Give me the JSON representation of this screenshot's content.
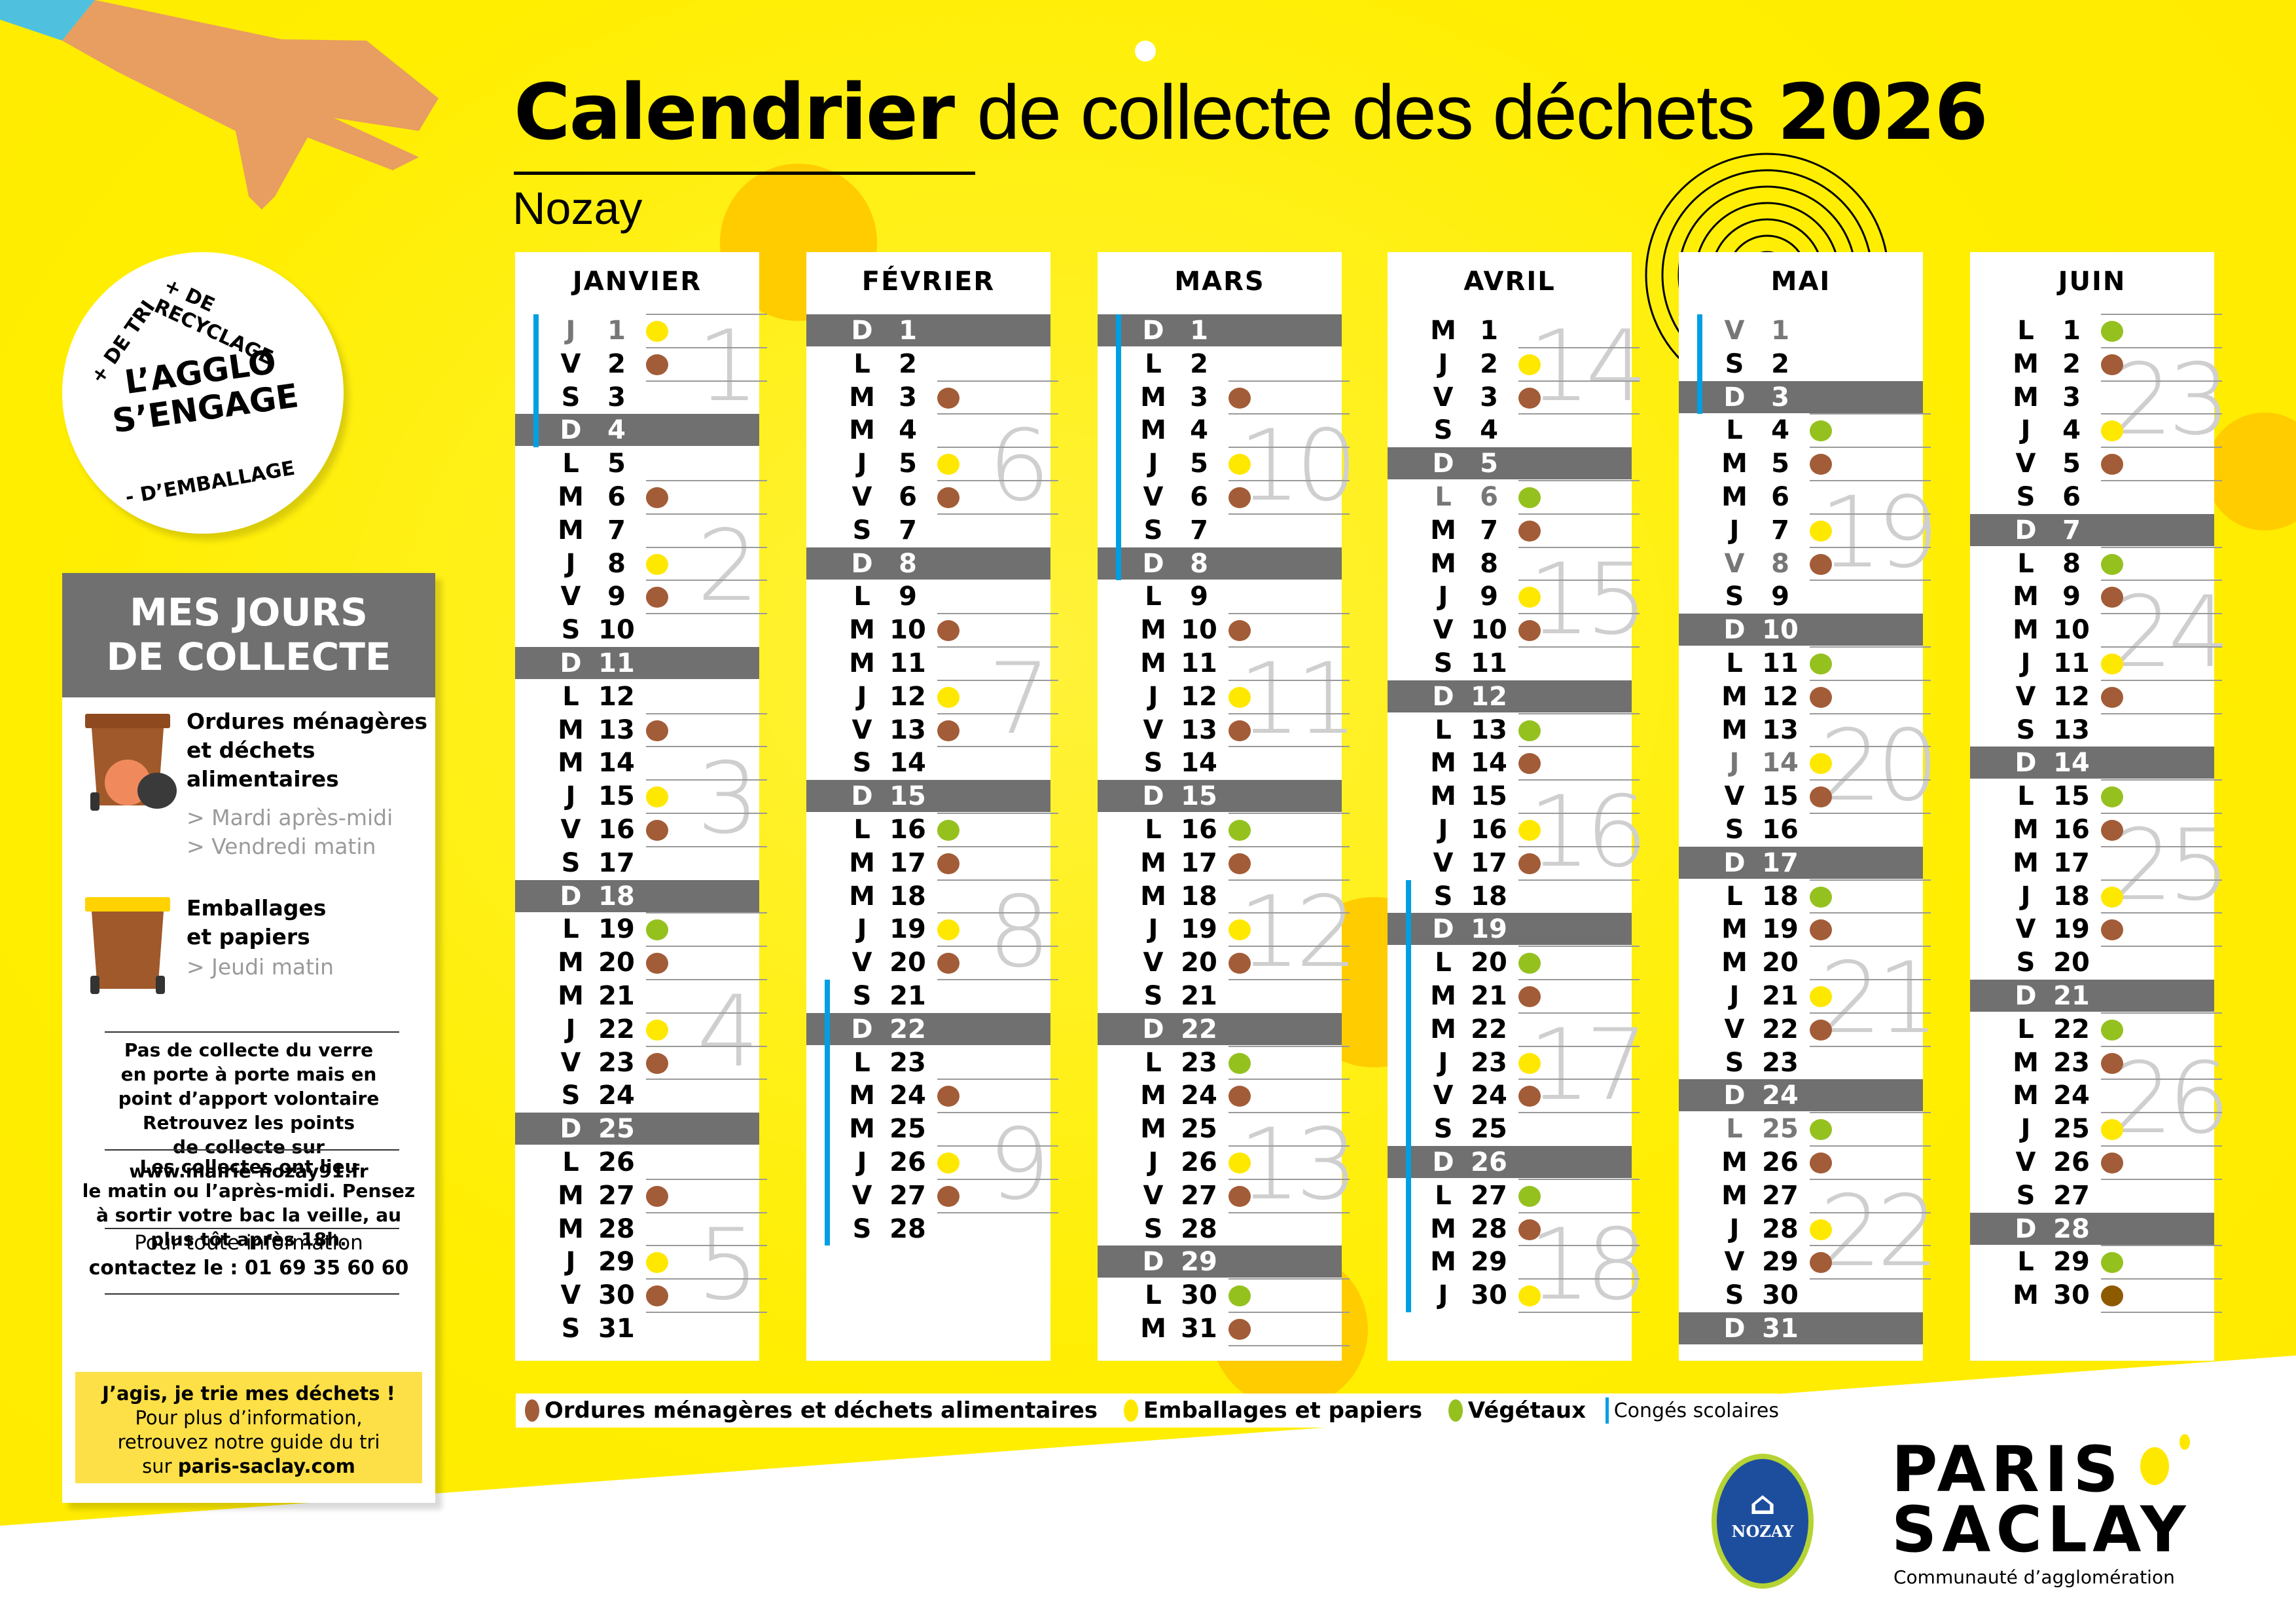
{
  "header": {
    "title_bold": "Calendrier",
    "title_light": "de collecte des déchets",
    "year": "2026",
    "commune": "Nozay"
  },
  "badge": {
    "line1": "L’AGGLO",
    "line2": "S’ENGAGE",
    "arc_top_left": "+ DE TRI",
    "arc_top_right": "+ DE RECYCLAGE",
    "arc_bottom": "- D’EMBALLAGE"
  },
  "panel": {
    "title_line1": "MES JOURS",
    "title_line2": "DE COLLECTE",
    "stream1": {
      "title": [
        "Ordures ménagères",
        "et déchets",
        "alimentaires"
      ],
      "days": [
        "> Mardi après-midi",
        "> Vendredi matin"
      ]
    },
    "stream2": {
      "title": [
        "Emballages",
        "et papiers"
      ],
      "days": [
        "> Jeudi matin"
      ]
    },
    "glass_note": [
      "Pas de collecte du verre",
      "en porte à porte mais en",
      "point d’apport volontaire",
      "Retrouvez les points",
      "de collecte sur",
      "www.mairie-nozay91.fr"
    ],
    "timing_note": [
      "Les collectes ont lieu",
      "le matin ou l’après-midi. Pensez",
      "à sortir votre bac la veille, au",
      "plus tôt après 18h."
    ],
    "contact_line1": "Pour toute information",
    "contact_line2": "contactez le : 01 69 35 60 60",
    "promo_bold": "J’agis, je trie mes déchets !",
    "promo_line1": "Pour plus d’information,",
    "promo_line2": "retrouvez notre guide du tri",
    "promo_line3_prefix": "sur ",
    "promo_link": "paris-saclay.com"
  },
  "colors": {
    "background": "#ffee00",
    "ordures": "#a25c37",
    "emballages": "#ffe800",
    "vegetaux": "#95c11f",
    "conges": "#009fe3",
    "sunday_bar": "#717070"
  },
  "legend": {
    "items": [
      {
        "label": "Ordures ménagères et déchets alimentaires",
        "color": "#a25c37",
        "icon": "brown-dot"
      },
      {
        "label": "Emballages et papiers",
        "color": "#ffe800",
        "icon": "yellow-dot"
      },
      {
        "label": "Végétaux",
        "color": "#95c11f",
        "icon": "green-dot"
      },
      {
        "label": "Congés scolaires",
        "color": "#009fe3",
        "icon": "blue-bar"
      }
    ]
  },
  "logos": {
    "commune": "NOZAY",
    "agglo_line1": "PARIS",
    "agglo_line2": "SACLAY",
    "agglo_sub": "Communauté d’agglomération"
  },
  "months": [
    {
      "name": "JANVIER",
      "first_weekday": 3,
      "days_count": 31,
      "holidays_gray": [
        1
      ],
      "collections": {
        "1": "yellow",
        "2": "brown",
        "6": "brown",
        "8": "yellow",
        "9": "brown",
        "13": "brown",
        "15": "yellow",
        "16": "brown",
        "19": "green",
        "20": "brown",
        "22": "yellow",
        "23": "brown",
        "27": "brown",
        "29": "yellow",
        "30": "brown"
      },
      "school_holidays": [
        [
          1,
          4
        ]
      ],
      "weeks": [
        {
          "n": "1",
          "row": 2
        },
        {
          "n": "2",
          "row": 8
        },
        {
          "n": "3",
          "row": 15
        },
        {
          "n": "4",
          "row": 22
        },
        {
          "n": "5",
          "row": 29
        }
      ]
    },
    {
      "name": "FÉVRIER",
      "first_weekday": 6,
      "days_count": 28,
      "holidays_gray": [],
      "collections": {
        "3": "brown",
        "5": "yellow",
        "6": "brown",
        "10": "brown",
        "12": "yellow",
        "13": "brown",
        "16": "green",
        "17": "brown",
        "19": "yellow",
        "20": "brown",
        "24": "brown",
        "26": "yellow",
        "27": "brown"
      },
      "school_holidays": [
        [
          21,
          28
        ]
      ],
      "weeks": [
        {
          "n": "6",
          "row": 5
        },
        {
          "n": "7",
          "row": 12
        },
        {
          "n": "8",
          "row": 19
        },
        {
          "n": "9",
          "row": 26
        }
      ]
    },
    {
      "name": "MARS",
      "first_weekday": 6,
      "days_count": 31,
      "holidays_gray": [],
      "collections": {
        "3": "brown",
        "5": "yellow",
        "6": "brown",
        "10": "brown",
        "12": "yellow",
        "13": "brown",
        "16": "green",
        "17": "brown",
        "19": "yellow",
        "20": "brown",
        "23": "green",
        "24": "brown",
        "26": "yellow",
        "27": "brown",
        "30": "green",
        "31": "brown"
      },
      "school_holidays": [
        [
          1,
          8
        ]
      ],
      "weeks": [
        {
          "n": "10",
          "row": 5
        },
        {
          "n": "11",
          "row": 12
        },
        {
          "n": "12",
          "row": 19
        },
        {
          "n": "13",
          "row": 26
        }
      ]
    },
    {
      "name": "AVRIL",
      "first_weekday": 2,
      "days_count": 30,
      "holidays_gray": [
        6
      ],
      "collections": {
        "2": "yellow",
        "3": "brown",
        "6": "green",
        "7": "brown",
        "9": "yellow",
        "10": "brown",
        "13": "green",
        "14": "brown",
        "16": "yellow",
        "17": "brown",
        "20": "green",
        "21": "brown",
        "23": "yellow",
        "24": "brown",
        "27": "green",
        "28": "brown",
        "30": "yellow"
      },
      "school_holidays": [
        [
          18,
          30
        ]
      ],
      "weeks": [
        {
          "n": "14",
          "row": 2
        },
        {
          "n": "15",
          "row": 9
        },
        {
          "n": "16",
          "row": 16
        },
        {
          "n": "17",
          "row": 23
        },
        {
          "n": "18",
          "row": 29
        }
      ]
    },
    {
      "name": "MAI",
      "first_weekday": 4,
      "days_count": 31,
      "holidays_gray": [
        1,
        8,
        14,
        25
      ],
      "collections": {
        "4": "green",
        "5": "brown",
        "7": "yellow",
        "8": "brown",
        "11": "green",
        "12": "brown",
        "14": "yellow",
        "15": "brown",
        "18": "green",
        "19": "brown",
        "21": "yellow",
        "22": "brown",
        "25": "green",
        "26": "brown",
        "28": "yellow",
        "29": "brown"
      },
      "school_holidays": [
        [
          1,
          3
        ]
      ],
      "weeks": [
        {
          "n": "19",
          "row": 7
        },
        {
          "n": "20",
          "row": 14
        },
        {
          "n": "21",
          "row": 21
        },
        {
          "n": "22",
          "row": 28
        }
      ]
    },
    {
      "name": "JUIN",
      "first_weekday": 0,
      "days_count": 30,
      "holidays_gray": [],
      "collections": {
        "1": "green",
        "2": "brown",
        "4": "yellow",
        "5": "brown",
        "8": "green",
        "9": "brown",
        "11": "yellow",
        "12": "brown",
        "15": "green",
        "16": "brown",
        "18": "yellow",
        "19": "brown",
        "22": "green",
        "23": "brown",
        "25": "yellow",
        "26": "brown",
        "29": "green",
        "30": "dkbrown"
      },
      "school_holidays": [],
      "weeks": [
        {
          "n": "23",
          "row": 3
        },
        {
          "n": "24",
          "row": 10
        },
        {
          "n": "25",
          "row": 17
        },
        {
          "n": "26",
          "row": 24
        }
      ]
    }
  ],
  "weekday_letters": [
    "L",
    "M",
    "M",
    "J",
    "V",
    "S",
    "D"
  ]
}
